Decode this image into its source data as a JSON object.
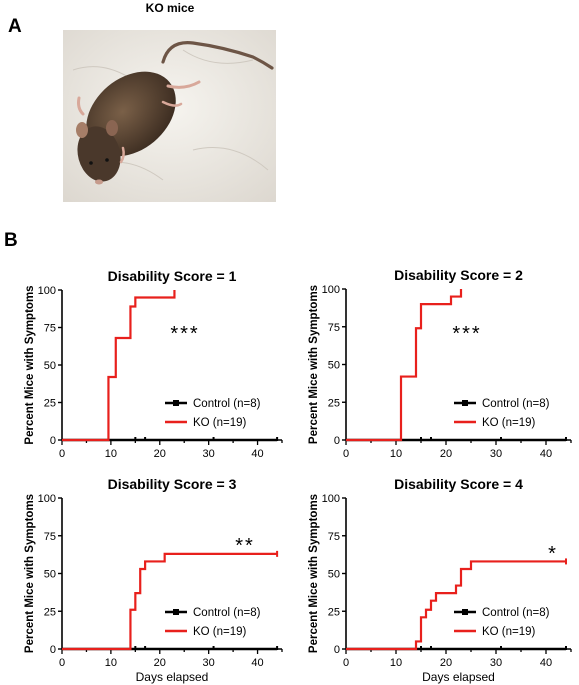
{
  "panel_a": {
    "letter": "A",
    "title": "KO mice"
  },
  "panel_b": {
    "letter": "B"
  },
  "colors": {
    "control": "#000000",
    "ko": "#e8201c",
    "axis": "#000000"
  },
  "chart_data": [
    {
      "type": "line",
      "step": true,
      "title": "Disability Score = 1",
      "xlabel": "",
      "ylabel": "Percent Mice with Symptoms",
      "xlim": [
        0,
        45
      ],
      "ylim": [
        0,
        100
      ],
      "xticks": [
        0,
        10,
        20,
        30,
        40
      ],
      "yticks": [
        0,
        25,
        50,
        75,
        100
      ],
      "significance": "***",
      "legend_position": "lower-right",
      "series": [
        {
          "name": "Control (n=8)",
          "x": [
            0,
            44
          ],
          "y": [
            0,
            0
          ],
          "censor_x": [
            15,
            17,
            31,
            44
          ]
        },
        {
          "name": "KO (n=19)",
          "x": [
            0,
            9.5,
            11,
            14,
            15,
            23
          ],
          "y": [
            0,
            42,
            68,
            89,
            95,
            100
          ]
        }
      ]
    },
    {
      "type": "line",
      "step": true,
      "title": "Disability Score = 2",
      "xlabel": "",
      "ylabel": "Percent Mice with Symptoms",
      "xlim": [
        0,
        45
      ],
      "ylim": [
        0,
        100
      ],
      "xticks": [
        0,
        10,
        20,
        30,
        40
      ],
      "yticks": [
        0,
        25,
        50,
        75,
        100
      ],
      "significance": "***",
      "legend_position": "lower-right",
      "series": [
        {
          "name": "Control (n=8)",
          "x": [
            0,
            44
          ],
          "y": [
            0,
            0
          ],
          "censor_x": [
            15,
            17,
            31,
            44
          ]
        },
        {
          "name": "KO (n=19)",
          "x": [
            0,
            11,
            14,
            15,
            21,
            23
          ],
          "y": [
            0,
            42,
            74,
            90,
            95,
            100
          ]
        }
      ]
    },
    {
      "type": "line",
      "step": true,
      "title": "Disability Score = 3",
      "xlabel": "Days elapsed",
      "ylabel": "Percent Mice with Symptoms",
      "xlim": [
        0,
        45
      ],
      "ylim": [
        0,
        100
      ],
      "xticks": [
        0,
        10,
        20,
        30,
        40
      ],
      "yticks": [
        0,
        25,
        50,
        75,
        100
      ],
      "significance": "**",
      "legend_position": "lower-right",
      "series": [
        {
          "name": "Control (n=8)",
          "x": [
            0,
            44
          ],
          "y": [
            0,
            0
          ],
          "censor_x": [
            15,
            17,
            31,
            44
          ]
        },
        {
          "name": "KO (n=19)",
          "x": [
            0,
            14,
            15,
            16,
            17,
            19,
            21,
            44
          ],
          "y": [
            0,
            26,
            37,
            53,
            58,
            58,
            63,
            63
          ]
        }
      ]
    },
    {
      "type": "line",
      "step": true,
      "title": "Disability Score  = 4",
      "xlabel": "Days elapsed",
      "ylabel": "Percent Mice with Symptoms",
      "xlim": [
        0,
        45
      ],
      "ylim": [
        0,
        100
      ],
      "xticks": [
        0,
        10,
        20,
        30,
        40
      ],
      "yticks": [
        0,
        25,
        50,
        75,
        100
      ],
      "significance": "*",
      "legend_position": "lower-right",
      "series": [
        {
          "name": "Control (n=8)",
          "x": [
            0,
            44
          ],
          "y": [
            0,
            0
          ],
          "censor_x": [
            15,
            17,
            31,
            44
          ]
        },
        {
          "name": "KO (n=19)",
          "x": [
            0,
            14,
            15,
            16,
            17,
            18,
            19,
            21,
            22,
            23,
            25,
            44
          ],
          "y": [
            0,
            5,
            21,
            26,
            32,
            37,
            37,
            37,
            42,
            53,
            58,
            58
          ]
        }
      ]
    }
  ]
}
